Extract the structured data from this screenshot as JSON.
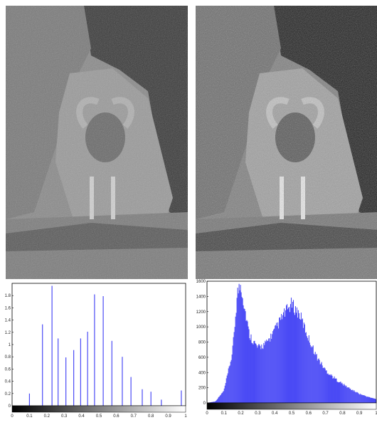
{
  "images": {
    "left": {
      "subject": "ram-on-rock-photo",
      "tone": "grayscale-low-contrast"
    },
    "right": {
      "subject": "ram-on-rock-photo",
      "tone": "grayscale-equalized"
    }
  },
  "colors": {
    "bar": "#4b4bf5",
    "axis": "#000000",
    "background": "#ffffff"
  },
  "chart_data": [
    {
      "type": "bar",
      "x": [
        0.1,
        0.175,
        0.23,
        0.265,
        0.31,
        0.355,
        0.395,
        0.435,
        0.475,
        0.525,
        0.575,
        0.635,
        0.685,
        0.75,
        0.8,
        0.86,
        0.975
      ],
      "values": [
        0.2,
        1.33,
        1.96,
        1.1,
        0.79,
        0.91,
        1.1,
        1.21,
        1.82,
        1.79,
        1.06,
        0.8,
        0.47,
        0.27,
        0.23,
        0.1,
        0.25
      ],
      "xlim": [
        0,
        1
      ],
      "ylim": [
        0,
        2.0
      ],
      "yticks": [
        "0",
        "0.2",
        "0.4",
        "0.6",
        "0.8",
        "1",
        "1.2",
        "1.4",
        "1.6",
        "1.8"
      ],
      "xticks": [
        "0",
        "0.1",
        "0.2",
        "0.3",
        "0.4",
        "0.5",
        "0.6",
        "0.7",
        "0.8",
        "0.9",
        "1"
      ],
      "grid": false,
      "colorbar": "grayscale"
    },
    {
      "type": "bar",
      "xlim": [
        0,
        1
      ],
      "ylim": [
        0,
        1600
      ],
      "yticks": [
        "0",
        "200",
        "400",
        "600",
        "800",
        "1000",
        "1200",
        "1400",
        "1600"
      ],
      "xticks": [
        "0",
        "0.1",
        "0.2",
        "0.3",
        "0.4",
        "0.5",
        "0.6",
        "0.7",
        "0.8",
        "0.9",
        "1"
      ],
      "profile": [
        [
          0,
          0
        ],
        [
          0.05,
          20
        ],
        [
          0.1,
          160
        ],
        [
          0.15,
          650
        ],
        [
          0.18,
          1450
        ],
        [
          0.2,
          1560
        ],
        [
          0.22,
          1280
        ],
        [
          0.25,
          900
        ],
        [
          0.3,
          720
        ],
        [
          0.35,
          780
        ],
        [
          0.4,
          950
        ],
        [
          0.45,
          1150
        ],
        [
          0.5,
          1300
        ],
        [
          0.55,
          1150
        ],
        [
          0.6,
          850
        ],
        [
          0.65,
          600
        ],
        [
          0.7,
          430
        ],
        [
          0.75,
          330
        ],
        [
          0.8,
          250
        ],
        [
          0.85,
          180
        ],
        [
          0.9,
          120
        ],
        [
          0.95,
          80
        ],
        [
          1.0,
          50
        ]
      ],
      "grid": false,
      "colorbar": "grayscale"
    }
  ]
}
